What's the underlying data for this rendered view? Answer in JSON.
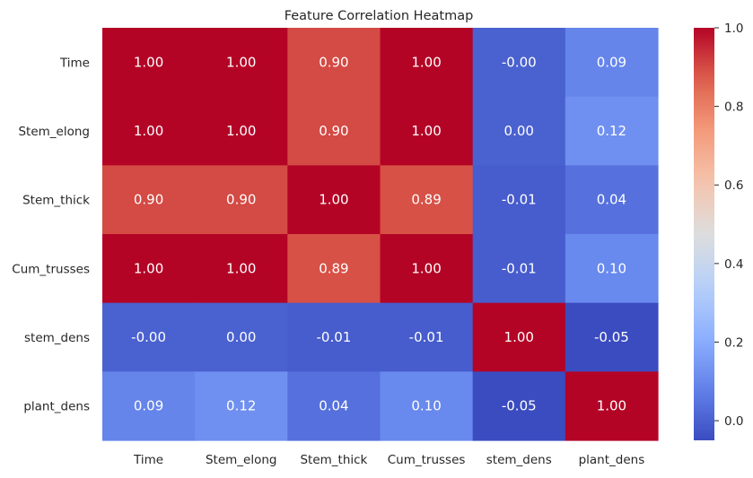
{
  "chart_data": {
    "type": "heatmap",
    "title": "Feature Correlation Heatmap",
    "xlabel": "",
    "ylabel": "",
    "x_categories": [
      "Time",
      "Stem_elong",
      "Stem_thick",
      "Cum_trusses",
      "stem_dens",
      "plant_dens"
    ],
    "y_categories": [
      "Time",
      "Stem_elong",
      "Stem_thick",
      "Cum_trusses",
      "stem_dens",
      "plant_dens"
    ],
    "values": [
      [
        1.0,
        1.0,
        0.9,
        1.0,
        -0.0,
        0.09
      ],
      [
        1.0,
        1.0,
        0.9,
        1.0,
        0.0,
        0.12
      ],
      [
        0.9,
        0.9,
        1.0,
        0.89,
        -0.01,
        0.04
      ],
      [
        1.0,
        1.0,
        0.89,
        1.0,
        -0.01,
        0.1
      ],
      [
        -0.0,
        0.0,
        -0.01,
        -0.01,
        1.0,
        -0.05
      ],
      [
        0.09,
        0.12,
        0.04,
        0.1,
        -0.05,
        1.0
      ]
    ],
    "annotations": [
      [
        "1.00",
        "1.00",
        "0.90",
        "1.00",
        "-0.00",
        "0.09"
      ],
      [
        "1.00",
        "1.00",
        "0.90",
        "1.00",
        "0.00",
        "0.12"
      ],
      [
        "0.90",
        "0.90",
        "1.00",
        "0.89",
        "-0.01",
        "0.04"
      ],
      [
        "1.00",
        "1.00",
        "0.89",
        "1.00",
        "-0.01",
        "0.10"
      ],
      [
        "-0.00",
        "0.00",
        "-0.01",
        "-0.01",
        "1.00",
        "-0.05"
      ],
      [
        "0.09",
        "0.12",
        "0.04",
        "0.10",
        "-0.05",
        "1.00"
      ]
    ],
    "colormap": "coolwarm",
    "vmin": -0.05,
    "vmax": 1.0,
    "colorbar": {
      "ticks": [
        0.0,
        0.2,
        0.4,
        0.6,
        0.8,
        1.0
      ],
      "tick_labels": [
        "0.0",
        "0.2",
        "0.4",
        "0.6",
        "0.8",
        "1.0"
      ]
    },
    "grid": false,
    "legend": "none"
  }
}
